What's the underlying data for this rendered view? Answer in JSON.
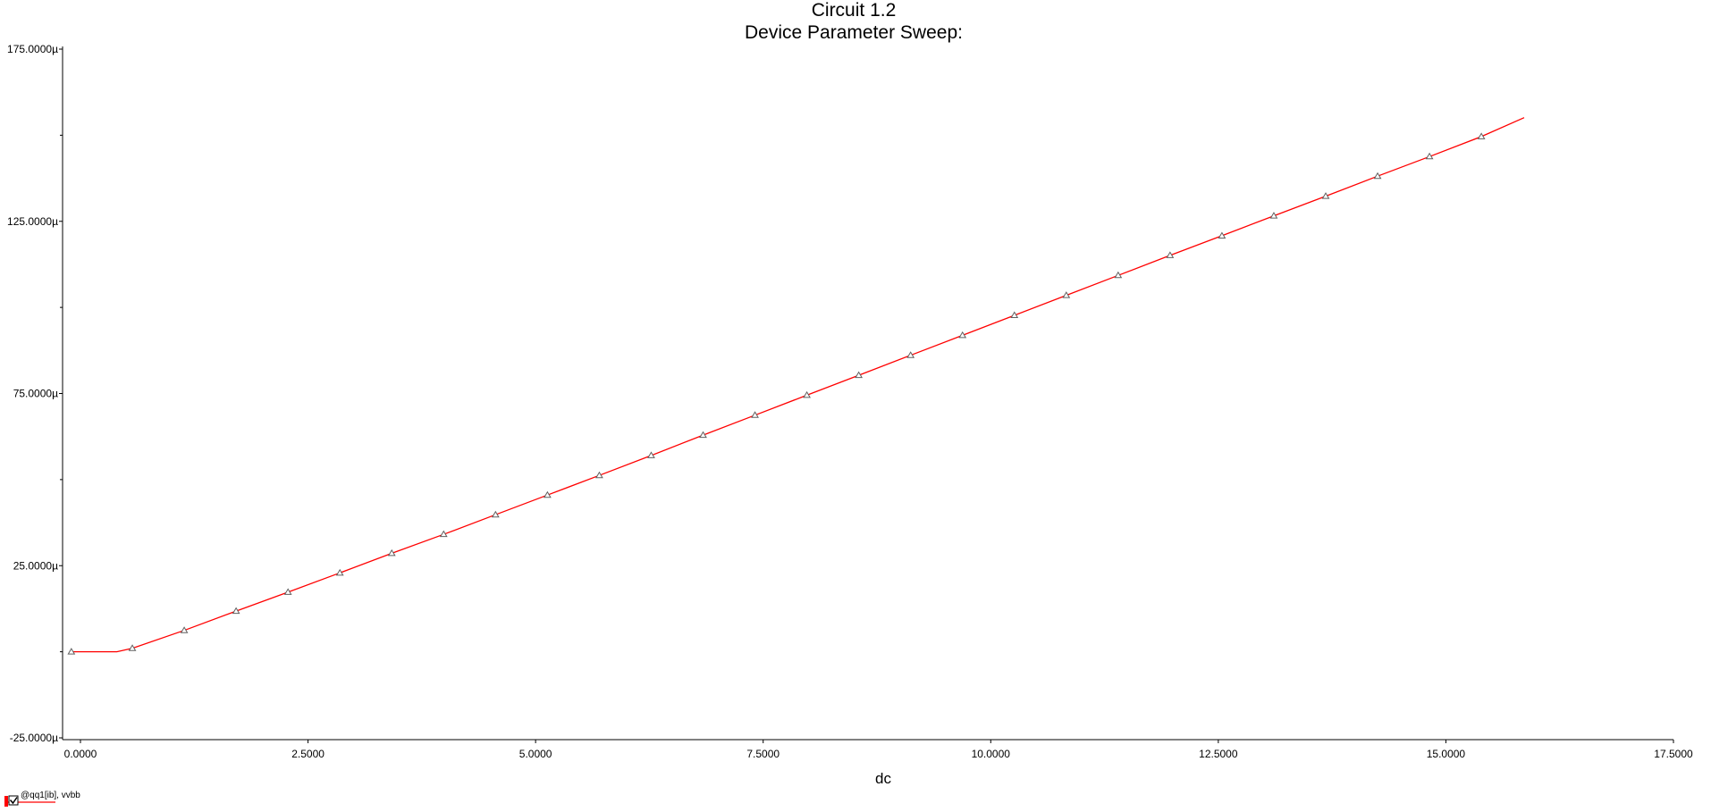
{
  "chart_data": {
    "type": "line",
    "title": "Circuit 1.2",
    "subtitle": "Device Parameter Sweep:",
    "xlabel": "dc",
    "ylabel": "",
    "xlim": [
      0,
      17.5
    ],
    "ylim": [
      -25,
      175
    ],
    "x_ticks": [
      0,
      2.5,
      5,
      7.5,
      10,
      12.5,
      15,
      17.5
    ],
    "x_tick_labels": [
      "0.0000",
      "2.5000",
      "5.0000",
      "7.5000",
      "10.0000",
      "12.5000",
      "15.0000",
      "17.5000"
    ],
    "y_ticks": [
      -25,
      25,
      75,
      125,
      175
    ],
    "y_tick_labels": [
      "-25.0000µ",
      "25.0000µ",
      "75.0000µ",
      "125.0000µ",
      "175.0000µ"
    ],
    "y_minor_ticks": [
      0,
      50,
      100,
      150
    ],
    "grid": false,
    "legend_position": "bottom-left",
    "series": [
      {
        "name": "@qq1[ib], vvbb",
        "color": "#ff0000",
        "marker": "triangle",
        "marker_color": "#606060",
        "x": [
          -0.1,
          0.3,
          0.4,
          0.57,
          1.14,
          1.71,
          2.28,
          2.85,
          3.42,
          3.99,
          4.56,
          5.13,
          5.7,
          6.27,
          6.84,
          7.41,
          7.98,
          8.55,
          9.12,
          9.69,
          10.26,
          10.83,
          11.4,
          11.97,
          12.54,
          13.11,
          13.68,
          14.25,
          14.82,
          15.39,
          15.86
        ],
        "y": [
          0.0,
          0.0,
          0.0,
          1.0,
          6.2,
          11.8,
          17.3,
          22.9,
          28.6,
          34.1,
          39.8,
          45.5,
          51.2,
          57.0,
          62.9,
          68.7,
          74.5,
          80.3,
          86.1,
          91.9,
          97.7,
          103.5,
          109.3,
          115.1,
          120.8,
          126.6,
          132.3,
          138.1,
          143.8,
          149.6,
          155.1
        ],
        "marker_x": [
          -0.1,
          0.57,
          1.14,
          1.71,
          2.28,
          2.85,
          3.42,
          3.99,
          4.56,
          5.13,
          5.7,
          6.27,
          6.84,
          7.41,
          7.98,
          8.55,
          9.12,
          9.69,
          10.26,
          10.83,
          11.4,
          11.97,
          12.54,
          13.11,
          13.68,
          14.25,
          14.82,
          15.39
        ],
        "marker_y": [
          0.0,
          1.0,
          6.2,
          11.8,
          17.3,
          22.9,
          28.6,
          34.1,
          39.8,
          45.5,
          51.2,
          57.0,
          62.9,
          68.7,
          74.5,
          80.3,
          86.1,
          91.9,
          97.7,
          103.5,
          109.3,
          115.1,
          120.8,
          126.6,
          132.3,
          138.1,
          143.8,
          149.6
        ]
      }
    ]
  },
  "legend": {
    "checkbox_checked": true,
    "label": "@qq1[ib], vvbb"
  }
}
